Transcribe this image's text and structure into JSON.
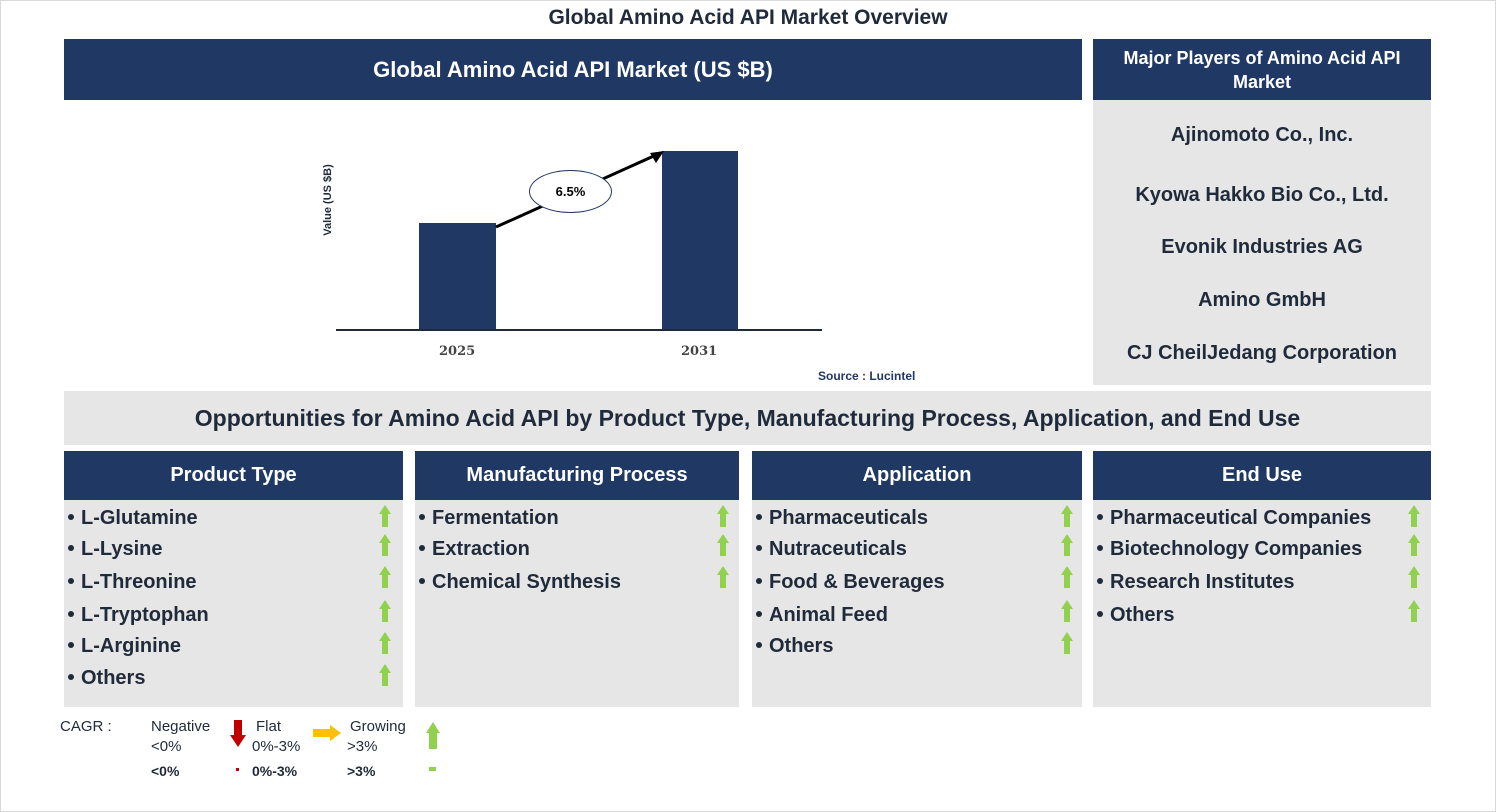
{
  "page_title": "Global Amino Acid API Market Overview",
  "chart_panel": {
    "header": "Global Amino Acid API Market (US $B)",
    "source": "Source : Lucintel"
  },
  "chart_data": {
    "type": "bar",
    "title": "Global Amino Acid API Market (US $B)",
    "categories": [
      "2025",
      "2031"
    ],
    "values": [
      1.0,
      1.46
    ],
    "value_note": "Relative bar heights only; no numeric axis values shown",
    "xlabel": "",
    "ylabel": "Value (US $B)",
    "annotation": {
      "type": "cagr-arrow",
      "label": "6.5%",
      "from": "2025",
      "to": "2031"
    },
    "grid": false,
    "legend": null,
    "bar_color": "#203864"
  },
  "players": {
    "header": "Major Players of Amino Acid API Market",
    "items": [
      "Ajinomoto Co., Inc.",
      "Kyowa Hakko Bio Co., Ltd.",
      "Evonik Industries AG",
      "Amino GmbH",
      "CJ CheilJedang Corporation"
    ]
  },
  "opportunities": {
    "banner": "Opportunities for Amino Acid API by Product Type, Manufacturing Process, Application, and End Use",
    "segments": [
      {
        "title": "Product Type",
        "items": [
          {
            "label": "L-Glutamine",
            "trend": "growing"
          },
          {
            "label": "L-Lysine",
            "trend": "growing"
          },
          {
            "label": "L-Threonine",
            "trend": "growing"
          },
          {
            "label": "L-Tryptophan",
            "trend": "growing"
          },
          {
            "label": "L-Arginine",
            "trend": "growing"
          },
          {
            "label": "Others",
            "trend": "growing"
          }
        ]
      },
      {
        "title": "Manufacturing Process",
        "items": [
          {
            "label": "Fermentation",
            "trend": "growing"
          },
          {
            "label": "Extraction",
            "trend": "growing"
          },
          {
            "label": "Chemical Synthesis",
            "trend": "growing"
          }
        ]
      },
      {
        "title": "Application",
        "items": [
          {
            "label": "Pharmaceuticals",
            "trend": "growing"
          },
          {
            "label": "Nutraceuticals",
            "trend": "growing"
          },
          {
            "label": "Food & Beverages",
            "trend": "growing"
          },
          {
            "label": "Animal Feed",
            "trend": "growing"
          },
          {
            "label": "Others",
            "trend": "growing"
          }
        ]
      },
      {
        "title": "End Use",
        "items": [
          {
            "label": "Pharmaceutical Companies",
            "trend": "growing"
          },
          {
            "label": "Biotechnology Companies",
            "trend": "growing"
          },
          {
            "label": "Research Institutes",
            "trend": "growing"
          },
          {
            "label": "Others",
            "trend": "growing"
          }
        ]
      }
    ]
  },
  "legend": {
    "label": "CAGR :",
    "negative": {
      "name": "Negative",
      "range": "<0%",
      "icon": "down-arrow-icon",
      "color": "#c00000"
    },
    "flat": {
      "name": "Flat",
      "range": "0%-3%",
      "icon": "right-arrow-icon",
      "color": "#ffc000"
    },
    "growing": {
      "name": "Growing",
      "range": ">3%",
      "icon": "up-arrow-icon",
      "color": "#92d050"
    }
  },
  "colors": {
    "navy": "#203864",
    "panel_grey": "#e6e6e6",
    "text_dark": "#1f2a3a",
    "growing_green": "#92d050"
  }
}
